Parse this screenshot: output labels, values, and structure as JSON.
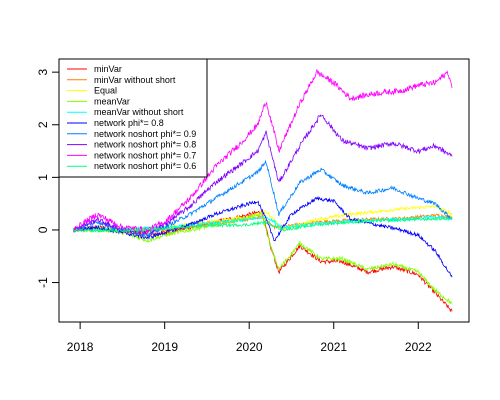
{
  "chart_data": {
    "type": "line",
    "title": "",
    "xlabel": "",
    "ylabel": "",
    "xlim": [
      2017.75,
      2022.6
    ],
    "ylim": [
      -1.75,
      3.25
    ],
    "x_ticks": [
      2018,
      2019,
      2020,
      2021,
      2022
    ],
    "x_tick_labels": [
      "2018",
      "2019",
      "2020",
      "2021",
      "2022"
    ],
    "y_ticks": [
      -1,
      0,
      1,
      2,
      3
    ],
    "y_tick_labels": [
      "-1",
      "0",
      "1",
      "2",
      "3"
    ],
    "grid": false,
    "legend_position": "top-left",
    "series": [
      {
        "name": "minVar",
        "color": "#FF0000",
        "x": [
          2017.92,
          2018.25,
          2018.5,
          2018.8,
          2019.0,
          2019.3,
          2019.6,
          2019.9,
          2020.15,
          2020.25,
          2020.35,
          2020.6,
          2020.85,
          2021.1,
          2021.4,
          2021.7,
          2022.0,
          2022.2,
          2022.4
        ],
        "y": [
          0.0,
          0.05,
          0.0,
          -0.1,
          -0.05,
          0.05,
          0.15,
          0.25,
          0.35,
          -0.3,
          -0.8,
          -0.3,
          -0.6,
          -0.6,
          -0.8,
          -0.7,
          -0.85,
          -1.2,
          -1.55
        ]
      },
      {
        "name": "minVar without short",
        "color": "#FF8000",
        "x": [
          2017.92,
          2018.5,
          2019.0,
          2019.5,
          2020.0,
          2020.15,
          2020.3,
          2020.8,
          2021.3,
          2021.8,
          2022.2,
          2022.4
        ],
        "y": [
          0.0,
          -0.02,
          0.0,
          0.1,
          0.2,
          0.25,
          0.05,
          0.15,
          0.2,
          0.22,
          0.28,
          0.25
        ]
      },
      {
        "name": "Equal",
        "color": "#FFFF00",
        "x": [
          2017.92,
          2018.5,
          2019.0,
          2019.5,
          2020.0,
          2020.2,
          2020.4,
          2020.8,
          2021.2,
          2021.5,
          2021.8,
          2022.2,
          2022.4
        ],
        "y": [
          0.0,
          0.0,
          0.05,
          0.15,
          0.25,
          0.35,
          0.0,
          0.2,
          0.3,
          0.35,
          0.4,
          0.45,
          0.3
        ]
      },
      {
        "name": "meanVar",
        "color": "#80FF00",
        "x": [
          2017.92,
          2018.25,
          2018.5,
          2018.8,
          2019.0,
          2019.3,
          2019.6,
          2019.9,
          2020.15,
          2020.25,
          2020.35,
          2020.6,
          2020.85,
          2021.1,
          2021.4,
          2021.7,
          2022.0,
          2022.2,
          2022.4
        ],
        "y": [
          0.0,
          0.03,
          -0.05,
          -0.2,
          -0.1,
          0.0,
          0.1,
          0.2,
          0.3,
          -0.3,
          -0.75,
          -0.25,
          -0.55,
          -0.55,
          -0.75,
          -0.65,
          -0.8,
          -1.15,
          -1.4
        ]
      },
      {
        "name": "meanVar without short",
        "color": "#00FFFF",
        "x": [
          2017.92,
          2018.5,
          2019.0,
          2019.5,
          2020.0,
          2020.2,
          2020.4,
          2020.8,
          2021.3,
          2021.8,
          2022.2,
          2022.4
        ],
        "y": [
          0.0,
          0.02,
          0.05,
          0.12,
          0.2,
          0.25,
          0.05,
          0.12,
          0.18,
          0.2,
          0.25,
          0.2
        ]
      },
      {
        "name": "network phi*= 0.8",
        "color": "#0000FF",
        "x": [
          2017.92,
          2018.2,
          2018.5,
          2018.8,
          2019.0,
          2019.3,
          2019.6,
          2019.9,
          2020.1,
          2020.2,
          2020.3,
          2020.5,
          2020.8,
          2021.0,
          2021.2,
          2021.5,
          2021.8,
          2022.0,
          2022.2,
          2022.4
        ],
        "y": [
          0.0,
          0.05,
          -0.05,
          -0.15,
          -0.05,
          0.1,
          0.3,
          0.45,
          0.55,
          0.2,
          -0.2,
          0.3,
          0.6,
          0.55,
          0.2,
          0.1,
          0.0,
          -0.1,
          -0.4,
          -0.9
        ]
      },
      {
        "name": "network noshort phi*= 0.9",
        "color": "#0080FF",
        "x": [
          2017.92,
          2018.2,
          2018.5,
          2018.8,
          2019.0,
          2019.3,
          2019.6,
          2019.9,
          2020.1,
          2020.2,
          2020.35,
          2020.6,
          2020.85,
          2021.1,
          2021.4,
          2021.7,
          2022.0,
          2022.2,
          2022.4
        ],
        "y": [
          0.0,
          0.15,
          0.0,
          -0.1,
          0.05,
          0.3,
          0.6,
          0.9,
          1.1,
          1.3,
          0.3,
          0.9,
          1.15,
          0.85,
          0.7,
          0.8,
          0.6,
          0.5,
          0.2
        ]
      },
      {
        "name": "network noshort phi*= 0.8",
        "color": "#8000FF",
        "x": [
          2017.92,
          2018.2,
          2018.5,
          2018.8,
          2019.0,
          2019.3,
          2019.6,
          2019.9,
          2020.1,
          2020.2,
          2020.35,
          2020.6,
          2020.85,
          2021.1,
          2021.4,
          2021.7,
          2022.0,
          2022.2,
          2022.4
        ],
        "y": [
          0.0,
          0.2,
          0.0,
          -0.05,
          0.1,
          0.45,
          0.9,
          1.25,
          1.5,
          1.85,
          0.9,
          1.6,
          2.2,
          1.7,
          1.55,
          1.65,
          1.5,
          1.6,
          1.4
        ]
      },
      {
        "name": "network noshort phi*= 0.7",
        "color": "#FF00FF",
        "x": [
          2017.92,
          2018.2,
          2018.5,
          2018.8,
          2019.0,
          2019.3,
          2019.6,
          2019.9,
          2020.1,
          2020.2,
          2020.35,
          2020.6,
          2020.8,
          2021.0,
          2021.2,
          2021.5,
          2021.8,
          2022.0,
          2022.2,
          2022.35,
          2022.4
        ],
        "y": [
          0.0,
          0.3,
          0.05,
          0.0,
          0.15,
          0.6,
          1.2,
          1.65,
          2.0,
          2.45,
          1.5,
          2.4,
          3.0,
          2.8,
          2.5,
          2.6,
          2.65,
          2.75,
          2.8,
          3.0,
          2.7
        ]
      },
      {
        "name": "network noshort phi*= 0.6",
        "color": "#00FF80",
        "x": [
          2017.92,
          2018.5,
          2019.0,
          2019.5,
          2020.0,
          2020.2,
          2020.4,
          2020.8,
          2021.2,
          2021.6,
          2022.0,
          2022.4
        ],
        "y": [
          0.0,
          -0.02,
          0.02,
          0.08,
          0.1,
          0.15,
          0.0,
          0.1,
          0.15,
          0.18,
          0.2,
          0.22
        ]
      }
    ]
  }
}
